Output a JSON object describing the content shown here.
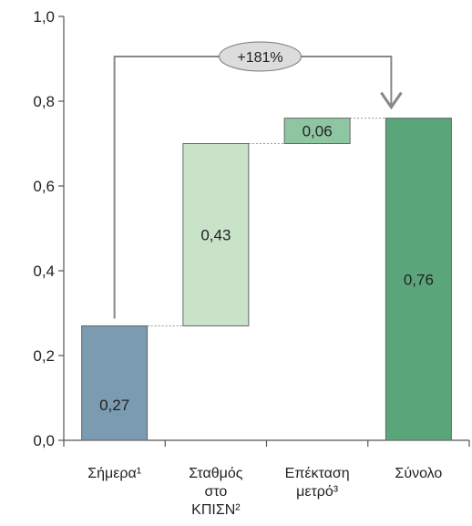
{
  "chart_data": {
    "type": "bar",
    "subtype": "waterfall",
    "categories": [
      [
        "Σήμερα¹"
      ],
      [
        "Σταθμός",
        "στο",
        "ΚΠΙΣΝ²"
      ],
      [
        "Επέκταση",
        "μετρό³"
      ],
      [
        "Σύνολο"
      ]
    ],
    "bars": [
      {
        "base": 0,
        "value": 0.27,
        "label": "0,27",
        "color": "#7a9bb0"
      },
      {
        "base": 0.27,
        "value": 0.43,
        "label": "0,43",
        "color": "#c9e3c9"
      },
      {
        "base": 0.7,
        "value": 0.06,
        "label": "0,06",
        "color": "#8fc6a2"
      },
      {
        "base": 0,
        "value": 0.76,
        "label": "0,76",
        "color": "#5aa67a"
      }
    ],
    "ylim": [
      0,
      1.0
    ],
    "yticks": [
      0.0,
      0.2,
      0.4,
      0.6,
      0.8,
      1.0
    ],
    "ytick_labels": [
      "0,0",
      "0,2",
      "0,4",
      "0,6",
      "0,8",
      "1,0"
    ],
    "annotation": {
      "text": "+181%",
      "from": 0,
      "to": 3
    },
    "grid": false
  }
}
